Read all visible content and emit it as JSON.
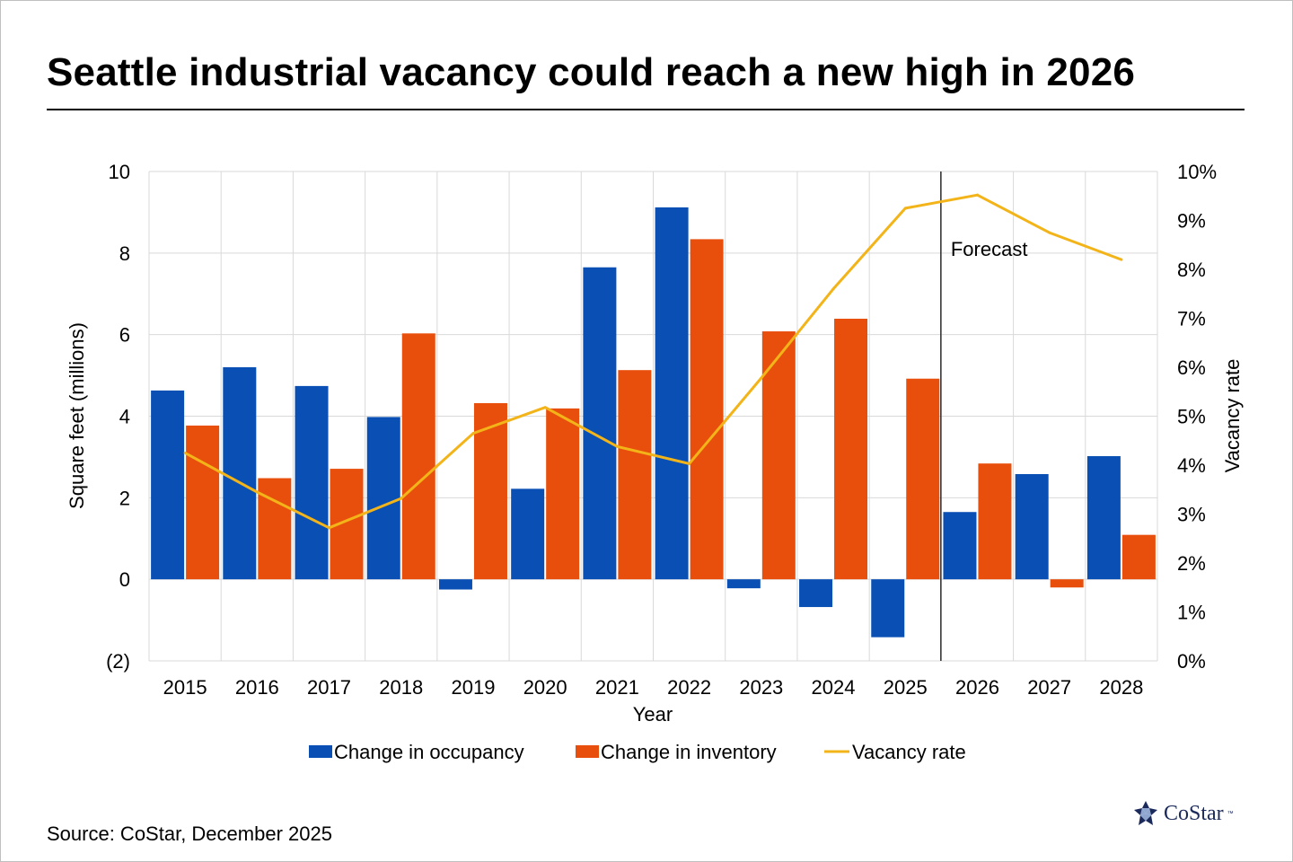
{
  "title": "Seattle industrial vacancy could reach a new high in 2026",
  "source": "Source: CoStar, December 2025",
  "logo": {
    "text": "CoStar",
    "tm": "™",
    "icon": "costar-star-icon"
  },
  "colors": {
    "occupancy": "#0a50b4",
    "inventory": "#e94f0c",
    "vacancy": "#f2b418",
    "grid": "#d9d9d9",
    "axis_text": "#000000"
  },
  "chart_data": {
    "type": "bar",
    "title": "Seattle industrial vacancy could reach a new high in 2026",
    "xlabel": "Year",
    "ylabel": "Square feet (millions)",
    "y2label": "Vacancy rate",
    "categories": [
      "2015",
      "2016",
      "2017",
      "2018",
      "2019",
      "2020",
      "2021",
      "2022",
      "2023",
      "2024",
      "2025",
      "2026",
      "2027",
      "2028"
    ],
    "ylim": [
      -2,
      10
    ],
    "yticks": [
      -2,
      0,
      2,
      4,
      6,
      8,
      10
    ],
    "ytick_labels": [
      "(2)",
      "0",
      "2",
      "4",
      "6",
      "8",
      "10"
    ],
    "y2lim": [
      0,
      10
    ],
    "y2ticks": [
      0,
      1,
      2,
      3,
      4,
      5,
      6,
      7,
      8,
      9,
      10
    ],
    "y2tick_labels": [
      "0%",
      "1%",
      "2%",
      "3%",
      "4%",
      "5%",
      "6%",
      "7%",
      "8%",
      "9%",
      "10%"
    ],
    "grid": true,
    "legend_position": "bottom",
    "series": [
      {
        "name": "Change in occupancy",
        "type": "bar",
        "axis": "left",
        "values": [
          4.63,
          5.2,
          4.74,
          3.98,
          -0.25,
          2.22,
          7.65,
          9.12,
          -0.22,
          -0.68,
          -1.42,
          1.65,
          2.58,
          3.02
        ]
      },
      {
        "name": "Change in inventory",
        "type": "bar",
        "axis": "left",
        "values": [
          3.77,
          2.48,
          2.71,
          6.03,
          4.32,
          4.19,
          5.13,
          8.34,
          6.08,
          6.39,
          4.92,
          2.84,
          -0.2,
          1.09
        ]
      },
      {
        "name": "Vacancy rate",
        "type": "line",
        "axis": "right",
        "values": [
          4.25,
          3.45,
          2.72,
          3.32,
          4.65,
          5.18,
          4.38,
          4.03,
          5.78,
          7.6,
          9.25,
          9.52,
          8.75,
          8.2
        ]
      }
    ],
    "annotations": [
      {
        "text": "Forecast",
        "after_category": "2025"
      }
    ]
  }
}
